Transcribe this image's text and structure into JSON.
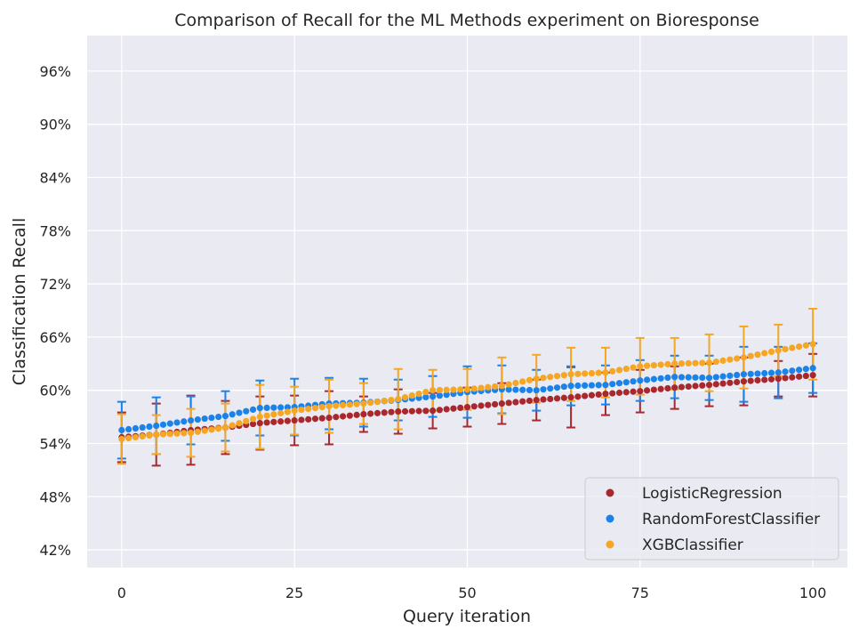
{
  "chart_data": {
    "type": "scatter",
    "title": "Comparison of Recall for the ML Methods experiment on Bioresponse",
    "xlabel": "Query iteration",
    "ylabel": "Classification Recall",
    "xlim": [
      -5,
      105
    ],
    "ylim": [
      0.4,
      1.0
    ],
    "xticks": [
      0,
      25,
      50,
      75,
      100
    ],
    "yticks": [
      0.42,
      0.48,
      0.54,
      0.6,
      0.66,
      0.72,
      0.78,
      0.84,
      0.9,
      0.96
    ],
    "ytick_labels": [
      "42%",
      "48%",
      "54%",
      "60%",
      "66%",
      "72%",
      "78%",
      "84%",
      "90%",
      "96%"
    ],
    "xtick_labels": [
      "0",
      "25",
      "50",
      "75",
      "100"
    ],
    "grid": true,
    "legend_position": "lower-right",
    "errorbar_every": 5,
    "series": [
      {
        "name": "LogisticRegression",
        "color": "#a8282e",
        "start": 0.547,
        "end": 0.617,
        "error_points": [
          {
            "x": 0,
            "y": 0.547,
            "err": 0.028
          },
          {
            "x": 5,
            "y": 0.55,
            "err": 0.035
          },
          {
            "x": 10,
            "y": 0.555,
            "err": 0.039
          },
          {
            "x": 15,
            "y": 0.558,
            "err": 0.03
          },
          {
            "x": 20,
            "y": 0.563,
            "err": 0.03
          },
          {
            "x": 25,
            "y": 0.566,
            "err": 0.028
          },
          {
            "x": 30,
            "y": 0.569,
            "err": 0.03
          },
          {
            "x": 35,
            "y": 0.573,
            "err": 0.02
          },
          {
            "x": 40,
            "y": 0.576,
            "err": 0.025
          },
          {
            "x": 45,
            "y": 0.577,
            "err": 0.02
          },
          {
            "x": 50,
            "y": 0.581,
            "err": 0.022
          },
          {
            "x": 55,
            "y": 0.585,
            "err": 0.023
          },
          {
            "x": 60,
            "y": 0.589,
            "err": 0.023
          },
          {
            "x": 65,
            "y": 0.592,
            "err": 0.034
          },
          {
            "x": 70,
            "y": 0.596,
            "err": 0.024
          },
          {
            "x": 75,
            "y": 0.599,
            "err": 0.024
          },
          {
            "x": 80,
            "y": 0.603,
            "err": 0.024
          },
          {
            "x": 85,
            "y": 0.606,
            "err": 0.024
          },
          {
            "x": 90,
            "y": 0.61,
            "err": 0.027
          },
          {
            "x": 95,
            "y": 0.613,
            "err": 0.02
          },
          {
            "x": 100,
            "y": 0.617,
            "err": 0.024
          }
        ]
      },
      {
        "name": "RandomForestClassifier",
        "color": "#1a82e8",
        "start": 0.555,
        "end": 0.625,
        "error_points": [
          {
            "x": 0,
            "y": 0.555,
            "err": 0.032
          },
          {
            "x": 5,
            "y": 0.56,
            "err": 0.032
          },
          {
            "x": 10,
            "y": 0.566,
            "err": 0.027
          },
          {
            "x": 15,
            "y": 0.571,
            "err": 0.028
          },
          {
            "x": 20,
            "y": 0.58,
            "err": 0.031
          },
          {
            "x": 25,
            "y": 0.581,
            "err": 0.032
          },
          {
            "x": 30,
            "y": 0.585,
            "err": 0.029
          },
          {
            "x": 35,
            "y": 0.586,
            "err": 0.027
          },
          {
            "x": 40,
            "y": 0.589,
            "err": 0.023
          },
          {
            "x": 45,
            "y": 0.593,
            "err": 0.023
          },
          {
            "x": 50,
            "y": 0.598,
            "err": 0.029
          },
          {
            "x": 55,
            "y": 0.601,
            "err": 0.027
          },
          {
            "x": 60,
            "y": 0.6,
            "err": 0.023
          },
          {
            "x": 65,
            "y": 0.605,
            "err": 0.022
          },
          {
            "x": 70,
            "y": 0.606,
            "err": 0.022
          },
          {
            "x": 75,
            "y": 0.611,
            "err": 0.023
          },
          {
            "x": 80,
            "y": 0.615,
            "err": 0.024
          },
          {
            "x": 85,
            "y": 0.614,
            "err": 0.025
          },
          {
            "x": 90,
            "y": 0.618,
            "err": 0.031
          },
          {
            "x": 95,
            "y": 0.62,
            "err": 0.029
          },
          {
            "x": 100,
            "y": 0.625,
            "err": 0.028
          }
        ]
      },
      {
        "name": "XGBClassifier",
        "color": "#f5a623",
        "start": 0.545,
        "end": 0.652,
        "error_points": [
          {
            "x": 0,
            "y": 0.545,
            "err": 0.028
          },
          {
            "x": 5,
            "y": 0.55,
            "err": 0.022
          },
          {
            "x": 10,
            "y": 0.552,
            "err": 0.027
          },
          {
            "x": 15,
            "y": 0.558,
            "err": 0.027
          },
          {
            "x": 20,
            "y": 0.57,
            "err": 0.036
          },
          {
            "x": 25,
            "y": 0.577,
            "err": 0.027
          },
          {
            "x": 30,
            "y": 0.582,
            "err": 0.03
          },
          {
            "x": 35,
            "y": 0.585,
            "err": 0.023
          },
          {
            "x": 40,
            "y": 0.59,
            "err": 0.034
          },
          {
            "x": 45,
            "y": 0.6,
            "err": 0.023
          },
          {
            "x": 50,
            "y": 0.601,
            "err": 0.023
          },
          {
            "x": 55,
            "y": 0.605,
            "err": 0.032
          },
          {
            "x": 60,
            "y": 0.613,
            "err": 0.027
          },
          {
            "x": 65,
            "y": 0.618,
            "err": 0.03
          },
          {
            "x": 70,
            "y": 0.62,
            "err": 0.028
          },
          {
            "x": 75,
            "y": 0.627,
            "err": 0.032
          },
          {
            "x": 80,
            "y": 0.63,
            "err": 0.029
          },
          {
            "x": 85,
            "y": 0.631,
            "err": 0.032
          },
          {
            "x": 90,
            "y": 0.637,
            "err": 0.035
          },
          {
            "x": 95,
            "y": 0.645,
            "err": 0.029
          },
          {
            "x": 100,
            "y": 0.652,
            "err": 0.04
          }
        ]
      }
    ]
  }
}
